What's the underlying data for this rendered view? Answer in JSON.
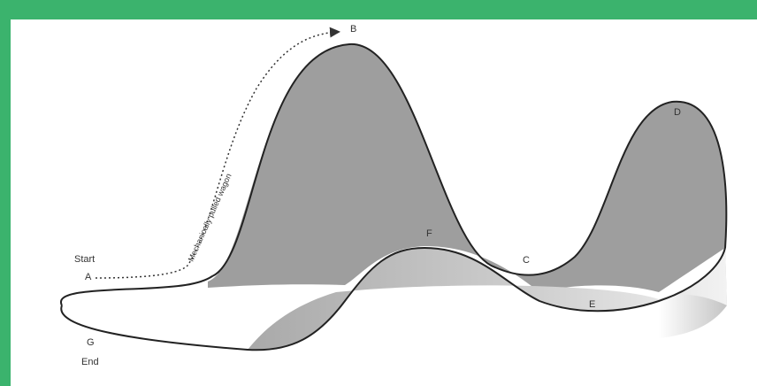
{
  "labels": {
    "start": "Start",
    "a": "A",
    "b": "B",
    "c": "C",
    "d": "D",
    "e": "E",
    "f": "F",
    "g": "G",
    "end": "End",
    "wagon": "Mechanically pulled wagon"
  }
}
